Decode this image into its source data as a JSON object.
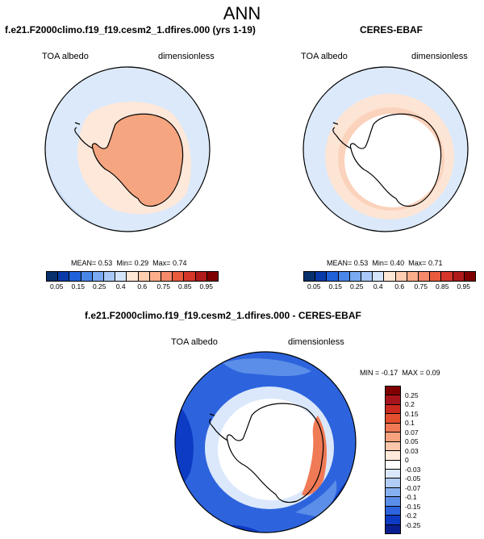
{
  "page": {
    "title": "ANN"
  },
  "panel_model": {
    "title": "f.e21.F2000climo.f19_f19.cesm2_1.dfires.000 (yrs 1-19)",
    "var_label": "TOA albedo",
    "units_label": "dimensionless",
    "stats": {
      "mean_label": "MEAN=",
      "mean": "0.53",
      "min_label": "Min=",
      "min": "0.29",
      "max_label": "Max=",
      "max": "0.74"
    }
  },
  "panel_obs": {
    "title": "CERES-EBAF",
    "var_label": "TOA albedo",
    "units_label": "dimensionless",
    "stats": {
      "mean_label": "MEAN=",
      "mean": "0.53",
      "min_label": "Min=",
      "min": "0.40",
      "max_label": "Max=",
      "max": "0.71"
    }
  },
  "panel_diff": {
    "title": "f.e21.F2000climo.f19_f19.cesm2_1.dfires.000 - CERES-EBAF",
    "var_label": "TOA albedo",
    "units_label": "dimensionless",
    "stats": {
      "min_label": "MIN =",
      "min": "-0.17",
      "max_label": "MAX =",
      "max": "0.09"
    }
  },
  "colorbar_abs": {
    "ticks": [
      "0.05",
      "0.15",
      "0.25",
      "0.4",
      "0.6",
      "0.75",
      "0.85",
      "0.95"
    ],
    "colors": [
      "#08306b",
      "#0a3aa8",
      "#2060d8",
      "#4a86e8",
      "#7aaaf0",
      "#a9c8f7",
      "#d4e5fb",
      "#ffe7d6",
      "#ffcdb0",
      "#fcad8a",
      "#f5896a",
      "#ea5b3e",
      "#d6352a",
      "#b01a1a",
      "#7f0000"
    ]
  },
  "colorbar_diff": {
    "labels": [
      "0.25",
      "0.2",
      "0.15",
      "0.1",
      "0.07",
      "0.05",
      "0.03",
      "0",
      "-0.03",
      "-0.05",
      "-0.07",
      "-0.1",
      "-0.15",
      "-0.2",
      "-0.25"
    ],
    "colors": [
      "#7f0000",
      "#a8141b",
      "#cc2a20",
      "#e4502f",
      "#f07a55",
      "#f6a27f",
      "#fbc8ab",
      "#ffe9da",
      "#ffffff",
      "#dbe8fb",
      "#b1cdf6",
      "#87b0f0",
      "#5b8ee8",
      "#2d64dd",
      "#0d3bc4",
      "#0a1f8f"
    ]
  },
  "chart_data": [
    {
      "type": "heatmap",
      "title": "f.e21.F2000climo.f19_f19.cesm2_1.dfires.000 (yrs 1-19)",
      "projection": "south polar stereographic",
      "variable": "TOA albedo",
      "units": "dimensionless",
      "mean": 0.53,
      "min": 0.29,
      "max": 0.74,
      "levels": [
        0.05,
        0.15,
        0.25,
        0.4,
        0.6,
        0.75,
        0.85,
        0.95
      ]
    },
    {
      "type": "heatmap",
      "title": "CERES-EBAF",
      "projection": "south polar stereographic",
      "variable": "TOA albedo",
      "units": "dimensionless",
      "mean": 0.53,
      "min": 0.4,
      "max": 0.71,
      "levels": [
        0.05,
        0.15,
        0.25,
        0.4,
        0.6,
        0.75,
        0.85,
        0.95
      ]
    },
    {
      "type": "heatmap",
      "title": "f.e21.F2000climo.f19_f19.cesm2_1.dfires.000 - CERES-EBAF",
      "projection": "south polar stereographic",
      "variable": "TOA albedo",
      "units": "dimensionless",
      "min": -0.17,
      "max": 0.09,
      "levels": [
        -0.25,
        -0.2,
        -0.15,
        -0.1,
        -0.07,
        -0.05,
        -0.03,
        0,
        0.03,
        0.05,
        0.07,
        0.1,
        0.15,
        0.2,
        0.25
      ]
    }
  ]
}
